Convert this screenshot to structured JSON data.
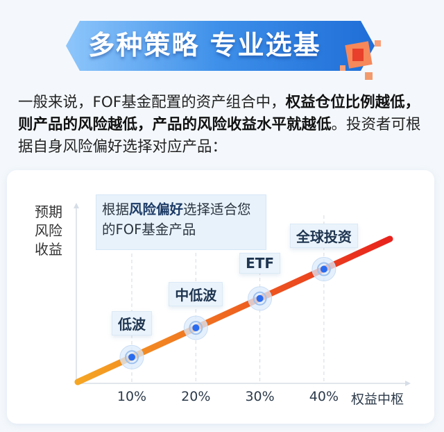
{
  "banner": {
    "title": "多种策略 专业选基"
  },
  "intro": {
    "part1": "一般来说，FOF基金配置的资产组合中，",
    "bold1": "权益仓位比例越低，则产品的风险越低，产品的风险收益水平就越低",
    "part2": "。投资者可根据自身风险偏好选择对应产品："
  },
  "callout": {
    "pre": "根据",
    "bold": "风险偏好",
    "post": "选择适合您的FOF基金产品"
  },
  "colors": {
    "line_start": "#f5a623",
    "line_end": "#e8231d",
    "point": "#2a6cf0",
    "banner": "#2f7fe0"
  },
  "chart_data": {
    "type": "line",
    "xlabel": "权益中枢",
    "ylabel": "预期风险收益",
    "x_ticks": [
      "10%",
      "20%",
      "30%",
      "40%"
    ],
    "points": [
      {
        "x": 10,
        "label": "低波"
      },
      {
        "x": 20,
        "label": "中低波"
      },
      {
        "x": 30,
        "label": "ETF"
      },
      {
        "x": 40,
        "label": "全球投资"
      }
    ],
    "trend": "linear increasing",
    "grid": "vertical dashed at ticks"
  }
}
